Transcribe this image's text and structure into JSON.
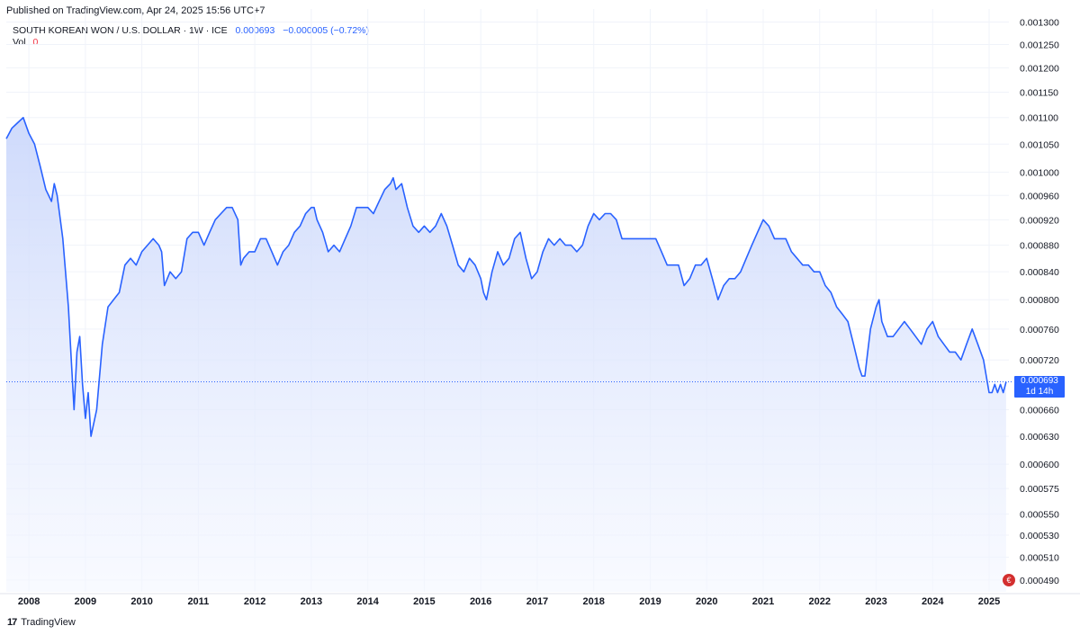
{
  "header": {
    "published": "Published on TradingView.com, Apr 24, 2025 15:56 UTC+7",
    "symbol": "SOUTH KOREAN WON / U.S. DOLLAR · 1W · ICE",
    "last_value": "0.000693",
    "change": "−0.000005 (−0.72%)",
    "vol_label": "Vol",
    "vol_value": "0"
  },
  "footer": {
    "brand": "TradingView",
    "logo_text": "17"
  },
  "price_tag": {
    "value": "0.000693",
    "countdown": "1d 14h"
  },
  "colors": {
    "line": "#2962ff",
    "fill_top": "#c9d6fb",
    "fill_bottom": "#f4f7ff",
    "up": "#2962ff",
    "down": "#2962ff",
    "vol": "#f23645"
  },
  "chart_data": {
    "type": "area",
    "title": "SOUTH KOREAN WON / U.S. DOLLAR · 1W · ICE",
    "xlabel": "",
    "ylabel": "",
    "x_ticks": [
      "2008",
      "2009",
      "2010",
      "2011",
      "2012",
      "2013",
      "2014",
      "2015",
      "2016",
      "2017",
      "2018",
      "2019",
      "2020",
      "2021",
      "2022",
      "2023",
      "2024",
      "2025"
    ],
    "y_ticks": [
      "0.001300",
      "0.001250",
      "0.001200",
      "0.001150",
      "0.001100",
      "0.001050",
      "0.001000",
      "0.000960",
      "0.000920",
      "0.000880",
      "0.000840",
      "0.000800",
      "0.000760",
      "0.000720",
      "0.000693",
      "0.000660",
      "0.000630",
      "0.000600",
      "0.000575",
      "0.000550",
      "0.000530",
      "0.000510",
      "0.000490"
    ],
    "y_scale": "log",
    "ylim": [
      0.00048,
      0.00133
    ],
    "xlim": [
      2007.6,
      2025.35
    ],
    "grid": true,
    "series": [
      {
        "values": [
          [
            2007.6,
            0.00106
          ],
          [
            2007.7,
            0.00108
          ],
          [
            2007.8,
            0.00109
          ],
          [
            2007.9,
            0.0011
          ],
          [
            2008.0,
            0.00107
          ],
          [
            2008.1,
            0.00105
          ],
          [
            2008.2,
            0.00101
          ],
          [
            2008.3,
            0.00097
          ],
          [
            2008.4,
            0.00095
          ],
          [
            2008.45,
            0.00098
          ],
          [
            2008.5,
            0.00096
          ],
          [
            2008.6,
            0.00089
          ],
          [
            2008.7,
            0.00079
          ],
          [
            2008.75,
            0.00072
          ],
          [
            2008.8,
            0.00066
          ],
          [
            2008.85,
            0.00073
          ],
          [
            2008.9,
            0.00075
          ],
          [
            2008.95,
            0.00069
          ],
          [
            2009.0,
            0.00065
          ],
          [
            2009.05,
            0.00068
          ],
          [
            2009.1,
            0.00063
          ],
          [
            2009.2,
            0.00066
          ],
          [
            2009.3,
            0.00074
          ],
          [
            2009.4,
            0.00079
          ],
          [
            2009.5,
            0.0008
          ],
          [
            2009.6,
            0.00081
          ],
          [
            2009.7,
            0.00085
          ],
          [
            2009.8,
            0.00086
          ],
          [
            2009.9,
            0.00085
          ],
          [
            2010.0,
            0.00087
          ],
          [
            2010.1,
            0.00088
          ],
          [
            2010.2,
            0.00089
          ],
          [
            2010.3,
            0.00088
          ],
          [
            2010.35,
            0.00087
          ],
          [
            2010.4,
            0.00082
          ],
          [
            2010.5,
            0.00084
          ],
          [
            2010.6,
            0.00083
          ],
          [
            2010.7,
            0.00084
          ],
          [
            2010.8,
            0.00089
          ],
          [
            2010.9,
            0.0009
          ],
          [
            2011.0,
            0.0009
          ],
          [
            2011.1,
            0.00088
          ],
          [
            2011.2,
            0.0009
          ],
          [
            2011.3,
            0.00092
          ],
          [
            2011.4,
            0.00093
          ],
          [
            2011.5,
            0.00094
          ],
          [
            2011.6,
            0.00094
          ],
          [
            2011.7,
            0.00092
          ],
          [
            2011.75,
            0.00085
          ],
          [
            2011.8,
            0.00086
          ],
          [
            2011.9,
            0.00087
          ],
          [
            2012.0,
            0.00087
          ],
          [
            2012.1,
            0.00089
          ],
          [
            2012.2,
            0.00089
          ],
          [
            2012.3,
            0.00087
          ],
          [
            2012.4,
            0.00085
          ],
          [
            2012.5,
            0.00087
          ],
          [
            2012.6,
            0.00088
          ],
          [
            2012.7,
            0.0009
          ],
          [
            2012.8,
            0.00091
          ],
          [
            2012.9,
            0.00093
          ],
          [
            2013.0,
            0.00094
          ],
          [
            2013.05,
            0.00094
          ],
          [
            2013.1,
            0.00092
          ],
          [
            2013.2,
            0.0009
          ],
          [
            2013.3,
            0.00087
          ],
          [
            2013.4,
            0.00088
          ],
          [
            2013.5,
            0.00087
          ],
          [
            2013.6,
            0.00089
          ],
          [
            2013.7,
            0.00091
          ],
          [
            2013.8,
            0.00094
          ],
          [
            2013.9,
            0.00094
          ],
          [
            2014.0,
            0.00094
          ],
          [
            2014.1,
            0.00093
          ],
          [
            2014.2,
            0.00095
          ],
          [
            2014.3,
            0.00097
          ],
          [
            2014.4,
            0.00098
          ],
          [
            2014.45,
            0.00099
          ],
          [
            2014.5,
            0.00097
          ],
          [
            2014.6,
            0.00098
          ],
          [
            2014.7,
            0.00094
          ],
          [
            2014.8,
            0.00091
          ],
          [
            2014.9,
            0.0009
          ],
          [
            2015.0,
            0.00091
          ],
          [
            2015.1,
            0.0009
          ],
          [
            2015.2,
            0.00091
          ],
          [
            2015.3,
            0.00093
          ],
          [
            2015.4,
            0.00091
          ],
          [
            2015.5,
            0.00088
          ],
          [
            2015.6,
            0.00085
          ],
          [
            2015.7,
            0.00084
          ],
          [
            2015.8,
            0.00086
          ],
          [
            2015.9,
            0.00085
          ],
          [
            2016.0,
            0.00083
          ],
          [
            2016.05,
            0.00081
          ],
          [
            2016.1,
            0.0008
          ],
          [
            2016.2,
            0.00084
          ],
          [
            2016.3,
            0.00087
          ],
          [
            2016.4,
            0.00085
          ],
          [
            2016.5,
            0.00086
          ],
          [
            2016.6,
            0.00089
          ],
          [
            2016.7,
            0.0009
          ],
          [
            2016.8,
            0.00086
          ],
          [
            2016.9,
            0.00083
          ],
          [
            2017.0,
            0.00084
          ],
          [
            2017.1,
            0.00087
          ],
          [
            2017.2,
            0.00089
          ],
          [
            2017.3,
            0.00088
          ],
          [
            2017.4,
            0.00089
          ],
          [
            2017.5,
            0.00088
          ],
          [
            2017.6,
            0.00088
          ],
          [
            2017.7,
            0.00087
          ],
          [
            2017.8,
            0.00088
          ],
          [
            2017.9,
            0.00091
          ],
          [
            2018.0,
            0.00093
          ],
          [
            2018.1,
            0.00092
          ],
          [
            2018.2,
            0.00093
          ],
          [
            2018.3,
            0.00093
          ],
          [
            2018.4,
            0.00092
          ],
          [
            2018.5,
            0.00089
          ],
          [
            2018.6,
            0.00089
          ],
          [
            2018.7,
            0.00089
          ],
          [
            2018.8,
            0.00089
          ],
          [
            2018.9,
            0.00089
          ],
          [
            2019.0,
            0.00089
          ],
          [
            2019.1,
            0.00089
          ],
          [
            2019.2,
            0.00087
          ],
          [
            2019.3,
            0.00085
          ],
          [
            2019.4,
            0.00085
          ],
          [
            2019.5,
            0.00085
          ],
          [
            2019.6,
            0.00082
          ],
          [
            2019.7,
            0.00083
          ],
          [
            2019.8,
            0.00085
          ],
          [
            2019.9,
            0.00085
          ],
          [
            2020.0,
            0.00086
          ],
          [
            2020.1,
            0.00083
          ],
          [
            2020.2,
            0.0008
          ],
          [
            2020.3,
            0.00082
          ],
          [
            2020.4,
            0.00083
          ],
          [
            2020.5,
            0.00083
          ],
          [
            2020.6,
            0.00084
          ],
          [
            2020.7,
            0.00086
          ],
          [
            2020.8,
            0.00088
          ],
          [
            2020.9,
            0.0009
          ],
          [
            2021.0,
            0.00092
          ],
          [
            2021.1,
            0.00091
          ],
          [
            2021.2,
            0.00089
          ],
          [
            2021.3,
            0.00089
          ],
          [
            2021.4,
            0.00089
          ],
          [
            2021.5,
            0.00087
          ],
          [
            2021.6,
            0.00086
          ],
          [
            2021.7,
            0.00085
          ],
          [
            2021.8,
            0.00085
          ],
          [
            2021.9,
            0.00084
          ],
          [
            2022.0,
            0.00084
          ],
          [
            2022.1,
            0.00082
          ],
          [
            2022.2,
            0.00081
          ],
          [
            2022.3,
            0.00079
          ],
          [
            2022.4,
            0.00078
          ],
          [
            2022.5,
            0.00077
          ],
          [
            2022.6,
            0.00074
          ],
          [
            2022.7,
            0.00071
          ],
          [
            2022.75,
            0.0007
          ],
          [
            2022.8,
            0.0007
          ],
          [
            2022.85,
            0.00073
          ],
          [
            2022.9,
            0.00076
          ],
          [
            2023.0,
            0.00079
          ],
          [
            2023.05,
            0.0008
          ],
          [
            2023.1,
            0.00077
          ],
          [
            2023.2,
            0.00075
          ],
          [
            2023.3,
            0.00075
          ],
          [
            2023.4,
            0.00076
          ],
          [
            2023.5,
            0.00077
          ],
          [
            2023.6,
            0.00076
          ],
          [
            2023.7,
            0.00075
          ],
          [
            2023.8,
            0.00074
          ],
          [
            2023.9,
            0.00076
          ],
          [
            2024.0,
            0.00077
          ],
          [
            2024.1,
            0.00075
          ],
          [
            2024.2,
            0.00074
          ],
          [
            2024.3,
            0.00073
          ],
          [
            2024.4,
            0.00073
          ],
          [
            2024.5,
            0.00072
          ],
          [
            2024.6,
            0.00074
          ],
          [
            2024.7,
            0.00076
          ],
          [
            2024.8,
            0.00074
          ],
          [
            2024.9,
            0.00072
          ],
          [
            2025.0,
            0.00068
          ],
          [
            2025.05,
            0.00068
          ],
          [
            2025.1,
            0.00069
          ],
          [
            2025.15,
            0.00068
          ],
          [
            2025.2,
            0.00069
          ],
          [
            2025.25,
            0.00068
          ],
          [
            2025.3,
            0.000693
          ]
        ]
      }
    ]
  }
}
